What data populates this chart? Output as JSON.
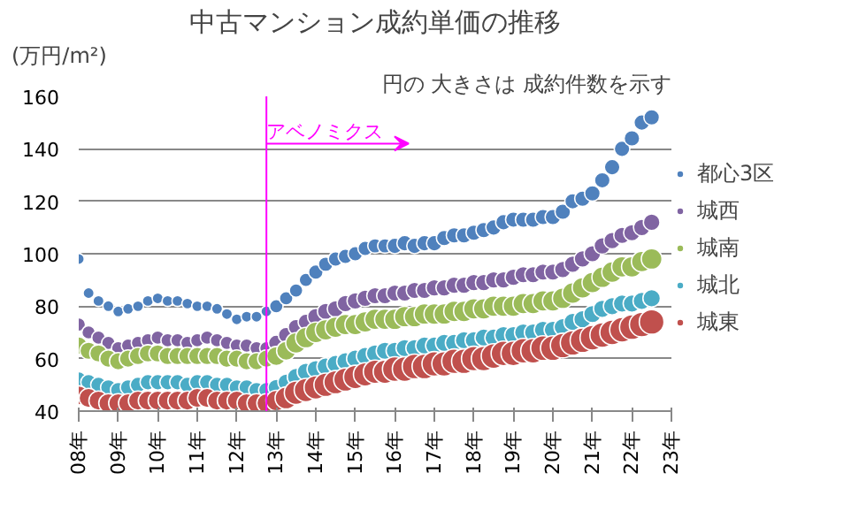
{
  "chart_data": {
    "type": "bubble",
    "title": "中古マンション成約単価の推移",
    "subtitle": "円の 大きさは 成約件数を示す",
    "ylabel": "(万円/m²)",
    "x": [
      "2008-01",
      "2008-04",
      "2008-07",
      "2008-10",
      "2009-01",
      "2009-04",
      "2009-07",
      "2009-10",
      "2010-01",
      "2010-04",
      "2010-07",
      "2010-10",
      "2011-01",
      "2011-04",
      "2011-07",
      "2011-10",
      "2012-01",
      "2012-04",
      "2012-07",
      "2012-10",
      "2013-01",
      "2013-04",
      "2013-07",
      "2013-10",
      "2014-01",
      "2014-04",
      "2014-07",
      "2014-10",
      "2015-01",
      "2015-04",
      "2015-07",
      "2015-10",
      "2016-01",
      "2016-04",
      "2016-07",
      "2016-10",
      "2017-01",
      "2017-04",
      "2017-07",
      "2017-10",
      "2018-01",
      "2018-04",
      "2018-07",
      "2018-10",
      "2019-01",
      "2019-04",
      "2019-07",
      "2019-10",
      "2020-01",
      "2020-04",
      "2020-07",
      "2020-10",
      "2021-01",
      "2021-04",
      "2021-07",
      "2021-10",
      "2022-01",
      "2022-04",
      "2022-07"
    ],
    "series": [
      {
        "name": "都心3区",
        "color": "#4f81bd",
        "values": [
          98,
          85,
          82,
          80,
          78,
          79,
          80,
          82,
          83,
          82,
          82,
          81,
          80,
          80,
          79,
          77,
          75,
          76,
          76,
          78,
          80,
          83,
          86,
          90,
          93,
          96,
          98,
          99,
          100,
          102,
          103,
          103,
          103,
          104,
          103,
          104,
          104,
          106,
          107,
          107,
          108,
          109,
          110,
          112,
          113,
          113,
          113,
          114,
          114,
          116,
          120,
          121,
          123,
          128,
          133,
          140,
          144,
          150,
          152
        ],
        "sizes": [
          0.2,
          0.2,
          0.2,
          0.2,
          0.2,
          0.2,
          0.2,
          0.2,
          0.2,
          0.2,
          0.2,
          0.2,
          0.2,
          0.2,
          0.2,
          0.2,
          0.2,
          0.2,
          0.2,
          0.2,
          0.3,
          0.3,
          0.3,
          0.3,
          0.35,
          0.35,
          0.35,
          0.35,
          0.35,
          0.35,
          0.35,
          0.35,
          0.4,
          0.4,
          0.4,
          0.4,
          0.4,
          0.4,
          0.4,
          0.4,
          0.4,
          0.4,
          0.4,
          0.4,
          0.4,
          0.4,
          0.4,
          0.4,
          0.4,
          0.4,
          0.4,
          0.4,
          0.4,
          0.4,
          0.4,
          0.4,
          0.4,
          0.4,
          0.4
        ]
      },
      {
        "name": "城西",
        "color": "#8064a2",
        "values": [
          73,
          70,
          68,
          66,
          64,
          65,
          66,
          67,
          68,
          67,
          67,
          66,
          67,
          68,
          67,
          66,
          65,
          65,
          64,
          64,
          66,
          69,
          72,
          74,
          76,
          78,
          79,
          81,
          82,
          83,
          84,
          84,
          85,
          85,
          86,
          86,
          87,
          87,
          88,
          88,
          89,
          89,
          90,
          90,
          91,
          92,
          92,
          93,
          93,
          94,
          96,
          98,
          100,
          103,
          105,
          107,
          108,
          110,
          112
        ],
        "sizes": [
          0.3,
          0.3,
          0.3,
          0.3,
          0.3,
          0.3,
          0.3,
          0.3,
          0.3,
          0.3,
          0.3,
          0.3,
          0.3,
          0.3,
          0.3,
          0.3,
          0.3,
          0.3,
          0.3,
          0.3,
          0.4,
          0.4,
          0.4,
          0.4,
          0.45,
          0.45,
          0.45,
          0.45,
          0.45,
          0.45,
          0.45,
          0.45,
          0.45,
          0.45,
          0.45,
          0.45,
          0.45,
          0.45,
          0.45,
          0.45,
          0.45,
          0.45,
          0.45,
          0.45,
          0.45,
          0.45,
          0.45,
          0.45,
          0.45,
          0.45,
          0.45,
          0.45,
          0.45,
          0.45,
          0.45,
          0.45,
          0.45,
          0.45,
          0.45
        ]
      },
      {
        "name": "城南",
        "color": "#9bbb59",
        "values": [
          65,
          63,
          62,
          60,
          59,
          60,
          61,
          62,
          62,
          61,
          61,
          61,
          61,
          61,
          61,
          60,
          60,
          59,
          59,
          60,
          61,
          63,
          66,
          68,
          70,
          71,
          72,
          73,
          73,
          74,
          75,
          75,
          75,
          76,
          76,
          77,
          77,
          77,
          78,
          78,
          79,
          79,
          80,
          80,
          80,
          81,
          81,
          82,
          82,
          83,
          85,
          87,
          89,
          91,
          93,
          95,
          95,
          97,
          98
        ],
        "sizes": [
          0.5,
          0.5,
          0.5,
          0.5,
          0.5,
          0.5,
          0.5,
          0.5,
          0.5,
          0.5,
          0.5,
          0.5,
          0.5,
          0.5,
          0.5,
          0.5,
          0.5,
          0.5,
          0.5,
          0.5,
          0.6,
          0.6,
          0.7,
          0.7,
          0.7,
          0.7,
          0.7,
          0.7,
          0.7,
          0.7,
          0.7,
          0.7,
          0.7,
          0.7,
          0.7,
          0.7,
          0.7,
          0.7,
          0.7,
          0.7,
          0.7,
          0.7,
          0.7,
          0.7,
          0.7,
          0.7,
          0.7,
          0.7,
          0.7,
          0.7,
          0.7,
          0.7,
          0.7,
          0.7,
          0.7,
          0.7,
          0.7,
          0.7,
          0.7
        ]
      },
      {
        "name": "城北",
        "color": "#4bacc6",
        "values": [
          52,
          51,
          50,
          49,
          48,
          49,
          50,
          51,
          51,
          51,
          51,
          50,
          51,
          51,
          50,
          50,
          49,
          49,
          48,
          48,
          49,
          51,
          53,
          55,
          56,
          57,
          58,
          59,
          60,
          61,
          62,
          63,
          63,
          64,
          64,
          65,
          65,
          66,
          66,
          67,
          67,
          68,
          68,
          69,
          69,
          70,
          70,
          71,
          71,
          72,
          74,
          75,
          77,
          79,
          80,
          81,
          81,
          82,
          83
        ],
        "sizes": [
          0.4,
          0.4,
          0.4,
          0.4,
          0.4,
          0.4,
          0.4,
          0.4,
          0.4,
          0.4,
          0.4,
          0.4,
          0.4,
          0.4,
          0.4,
          0.4,
          0.4,
          0.4,
          0.4,
          0.4,
          0.45,
          0.45,
          0.5,
          0.5,
          0.5,
          0.5,
          0.5,
          0.5,
          0.5,
          0.5,
          0.5,
          0.5,
          0.5,
          0.5,
          0.5,
          0.5,
          0.5,
          0.5,
          0.5,
          0.5,
          0.5,
          0.5,
          0.5,
          0.5,
          0.5,
          0.5,
          0.5,
          0.5,
          0.5,
          0.5,
          0.5,
          0.5,
          0.5,
          0.5,
          0.5,
          0.5,
          0.5,
          0.5,
          0.5
        ]
      },
      {
        "name": "城東",
        "color": "#c0504d",
        "values": [
          46,
          45,
          44,
          43,
          43,
          43,
          44,
          44,
          44,
          44,
          44,
          44,
          45,
          45,
          44,
          44,
          44,
          43,
          43,
          43,
          44,
          45,
          47,
          48,
          49,
          50,
          51,
          52,
          53,
          54,
          55,
          55,
          56,
          56,
          57,
          57,
          58,
          58,
          59,
          59,
          60,
          60,
          61,
          62,
          62,
          63,
          63,
          64,
          64,
          65,
          66,
          67,
          68,
          69,
          70,
          71,
          72,
          73,
          74
        ],
        "sizes": [
          0.6,
          0.6,
          0.6,
          0.6,
          0.6,
          0.6,
          0.6,
          0.6,
          0.6,
          0.6,
          0.6,
          0.6,
          0.6,
          0.6,
          0.6,
          0.6,
          0.6,
          0.6,
          0.6,
          0.6,
          0.7,
          0.8,
          0.9,
          0.9,
          0.9,
          0.9,
          0.9,
          0.9,
          0.9,
          0.9,
          0.9,
          0.9,
          1,
          1,
          1,
          1,
          1,
          1,
          1,
          1,
          1,
          1,
          1,
          1,
          1,
          1,
          1,
          1,
          1,
          1,
          1,
          1,
          1,
          1,
          1,
          1,
          1,
          1,
          1
        ]
      }
    ],
    "xlim": [
      "2008",
      "2023"
    ],
    "xticks": [
      {
        "value": "2008",
        "label": "08年"
      },
      {
        "value": "2009",
        "label": "09年"
      },
      {
        "value": "2010",
        "label": "10年"
      },
      {
        "value": "2011",
        "label": "11年"
      },
      {
        "value": "2012",
        "label": "12年"
      },
      {
        "value": "2013",
        "label": "13年"
      },
      {
        "value": "2014",
        "label": "14年"
      },
      {
        "value": "2015",
        "label": "15年"
      },
      {
        "value": "2016",
        "label": "16年"
      },
      {
        "value": "2017",
        "label": "17年"
      },
      {
        "value": "2018",
        "label": "18年"
      },
      {
        "value": "2019",
        "label": "19年"
      },
      {
        "value": "2020",
        "label": "20年"
      },
      {
        "value": "2021",
        "label": "21年"
      },
      {
        "value": "2022",
        "label": "22年"
      },
      {
        "value": "2023",
        "label": "23年"
      }
    ],
    "ylim": [
      40,
      160
    ],
    "yticks": [
      40,
      60,
      80,
      100,
      120,
      140,
      160
    ],
    "ref_lines": [
      {
        "axis": "x",
        "value": "2012-10",
        "label": "アベノミクス",
        "color": "#ff00ff"
      }
    ],
    "grid": "y",
    "legend": "right",
    "marker": "circle"
  }
}
